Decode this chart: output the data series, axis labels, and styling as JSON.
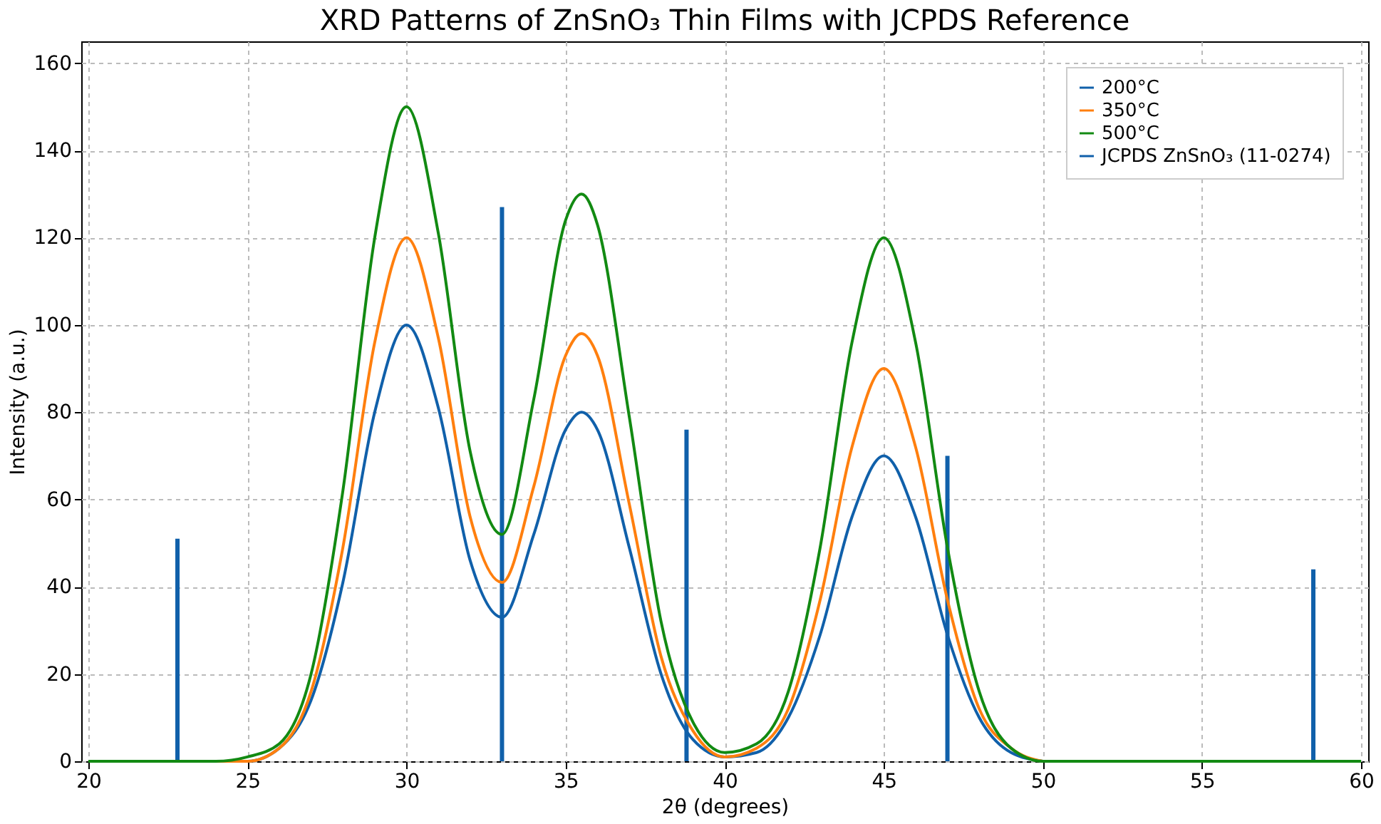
{
  "chart_data": {
    "type": "line",
    "title": "XRD Patterns of ZnSnO₃ Thin Films with JCPDS Reference",
    "xlabel": "2θ (degrees)",
    "ylabel": "Intensity (a.u.)",
    "x": [
      20,
      22,
      24,
      25,
      26,
      27,
      28,
      29,
      30,
      31,
      32,
      33,
      34,
      35,
      35.5,
      36,
      37,
      38,
      39,
      40,
      41,
      42,
      43,
      44,
      45,
      46,
      47,
      48,
      49,
      50,
      52,
      55,
      60
    ],
    "series": [
      {
        "name": "200°C",
        "color": "#1060aa",
        "values": [
          0,
          0,
          0,
          0,
          3,
          14,
          41,
          80,
          100,
          81,
          46,
          33,
          52,
          76,
          80,
          76,
          49,
          20,
          5,
          1,
          2,
          10,
          29,
          56,
          70,
          56,
          29,
          10,
          2,
          0,
          null,
          null,
          null
        ]
      },
      {
        "name": "350°C",
        "color": "#ff7f0e",
        "values": [
          0,
          0,
          0,
          0,
          3,
          16,
          49,
          96,
          120,
          97,
          56,
          41,
          63,
          93,
          98,
          93,
          59,
          24,
          7,
          1,
          3,
          12,
          37,
          72,
          90,
          72,
          37,
          12,
          3,
          0,
          null,
          null,
          null
        ]
      },
      {
        "name": "500°C",
        "color": "#128a12",
        "values": [
          0,
          0,
          0,
          1,
          4,
          20,
          62,
          120,
          150,
          121,
          71,
          52,
          83,
          124,
          130,
          123,
          79,
          32,
          9,
          2,
          4,
          16,
          49,
          96,
          120,
          96,
          49,
          16,
          3,
          0,
          0,
          0,
          0
        ]
      },
      {
        "name": "JCPDS ZnSnO₃ (11-0274)",
        "type": "bar",
        "color": "#1060aa",
        "x": [
          22.8,
          33,
          38.8,
          47,
          58.5
        ],
        "values": [
          51,
          127,
          76,
          70,
          44
        ]
      }
    ],
    "xlim": [
      20,
      60
    ],
    "xticks": [
      20,
      25,
      30,
      35,
      40,
      45,
      50,
      55,
      60
    ],
    "ylim": [
      0,
      165
    ],
    "yticks": [
      0,
      20,
      40,
      60,
      80,
      100,
      120,
      140,
      160
    ],
    "grid": true,
    "legend": "top right",
    "marker": "none",
    "line_style": "solid"
  }
}
